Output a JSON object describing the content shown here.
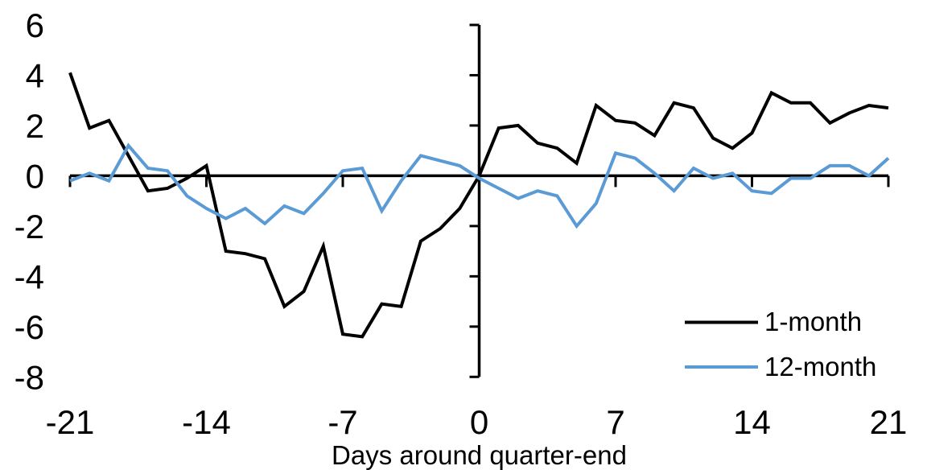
{
  "chart_data": {
    "type": "line",
    "title": "",
    "xlabel": "Days around quarter-end",
    "ylabel": "",
    "xlim": [
      -21,
      21
    ],
    "ylim": [
      -8,
      6
    ],
    "xticks": [
      -21,
      -14,
      -7,
      0,
      7,
      14,
      21
    ],
    "yticks": [
      6,
      4,
      2,
      0,
      -2,
      -4,
      -6,
      -8
    ],
    "grid": false,
    "legend_position": "inside-bottom-right",
    "x": [
      -21,
      -20,
      -19,
      -18,
      -17,
      -16,
      -15,
      -14,
      -13,
      -12,
      -11,
      -10,
      -9,
      -8,
      -7,
      -6,
      -5,
      -4,
      -3,
      -2,
      -1,
      0,
      1,
      2,
      3,
      4,
      5,
      6,
      7,
      8,
      9,
      10,
      11,
      12,
      13,
      14,
      15,
      16,
      17,
      18,
      19,
      20,
      21
    ],
    "series": [
      {
        "name": "1-month",
        "color": "#000000",
        "values": [
          4.1,
          1.9,
          2.2,
          0.8,
          -0.6,
          -0.5,
          -0.1,
          0.4,
          -3.0,
          -3.1,
          -3.3,
          -5.2,
          -4.6,
          -2.8,
          -6.3,
          -6.4,
          -5.1,
          -5.2,
          -2.6,
          -2.1,
          -1.3,
          0.0,
          1.9,
          2.0,
          1.3,
          1.1,
          0.5,
          2.8,
          2.2,
          2.1,
          1.6,
          2.9,
          2.7,
          1.5,
          1.1,
          1.7,
          3.3,
          2.9,
          2.9,
          2.1,
          2.5,
          2.8,
          2.7
        ]
      },
      {
        "name": "12-month",
        "color": "#5B9BD5",
        "values": [
          -0.2,
          0.1,
          -0.2,
          1.2,
          0.3,
          0.2,
          -0.8,
          -1.3,
          -1.7,
          -1.3,
          -1.9,
          -1.2,
          -1.5,
          -0.7,
          0.2,
          0.3,
          -1.4,
          -0.2,
          0.8,
          0.6,
          0.4,
          -0.1,
          -0.5,
          -0.9,
          -0.6,
          -0.8,
          -2.0,
          -1.1,
          0.9,
          0.7,
          0.1,
          -0.6,
          0.3,
          -0.1,
          0.1,
          -0.6,
          -0.7,
          -0.1,
          -0.1,
          0.4,
          0.4,
          0.0,
          0.7
        ]
      }
    ]
  }
}
